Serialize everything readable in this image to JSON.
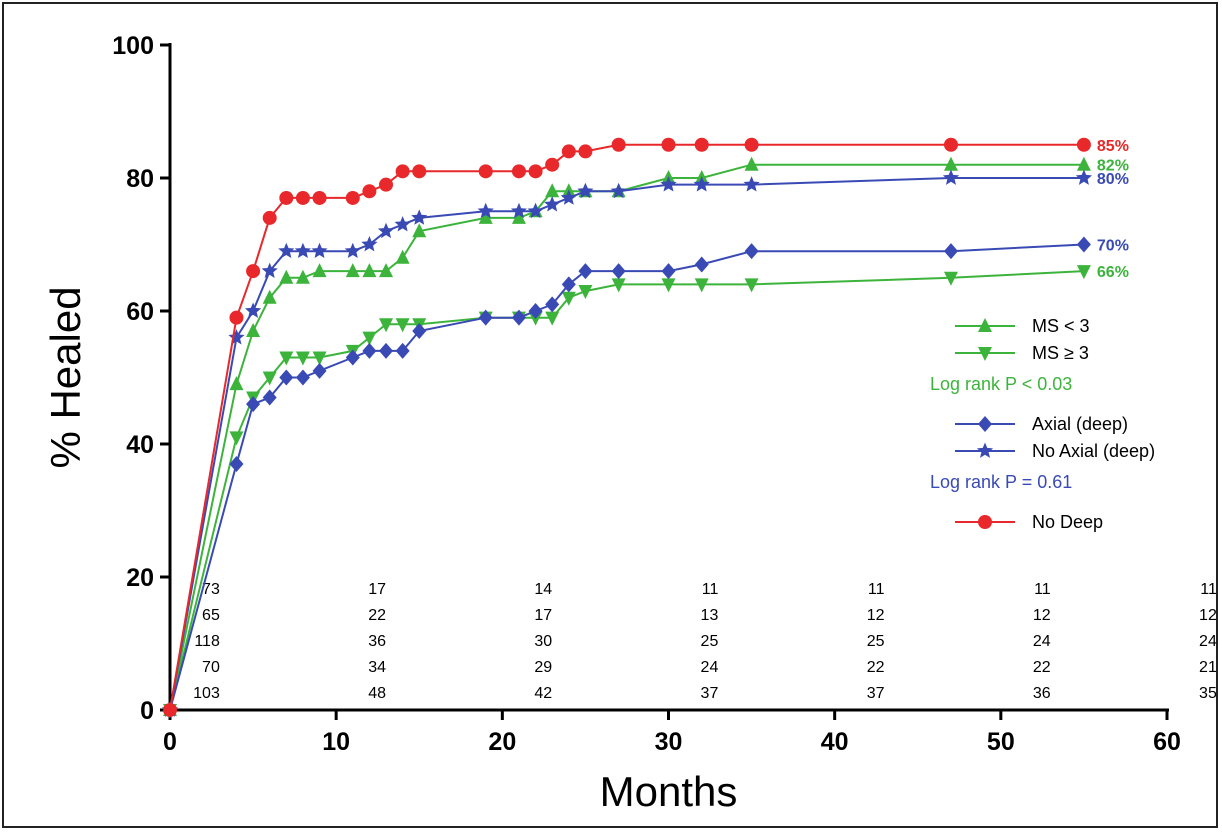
{
  "chart_data": {
    "type": "line",
    "subtype": "kaplan-meier step curves",
    "xlabel": "Months",
    "ylabel": "% Healed",
    "xlim": [
      0,
      60
    ],
    "ylim": [
      0,
      100
    ],
    "x_ticks": [
      "0",
      "10",
      "20",
      "30",
      "40",
      "50",
      "60"
    ],
    "y_ticks": [
      "0",
      "20",
      "40",
      "60",
      "80",
      "100"
    ],
    "grid": false,
    "legend_position": "right-middle",
    "series": [
      {
        "name": "MS < 3",
        "color": "#3cb43c",
        "marker": "triangle-up",
        "end_label": "82%",
        "points": [
          [
            0,
            0
          ],
          [
            4,
            49
          ],
          [
            5,
            57
          ],
          [
            6,
            62
          ],
          [
            7,
            65
          ],
          [
            8,
            65
          ],
          [
            9,
            66
          ],
          [
            11,
            66
          ],
          [
            12,
            66
          ],
          [
            13,
            66
          ],
          [
            14,
            68
          ],
          [
            15,
            72
          ],
          [
            19,
            74
          ],
          [
            21,
            74
          ],
          [
            22,
            75
          ],
          [
            23,
            78
          ],
          [
            24,
            78
          ],
          [
            25,
            78
          ],
          [
            27,
            78
          ],
          [
            30,
            80
          ],
          [
            32,
            80
          ],
          [
            35,
            82
          ],
          [
            47,
            82
          ],
          [
            55,
            82
          ]
        ]
      },
      {
        "name": "MS ≥ 3",
        "color": "#3cb43c",
        "marker": "triangle-down",
        "end_label": "66%",
        "points": [
          [
            0,
            0
          ],
          [
            4,
            41
          ],
          [
            5,
            47
          ],
          [
            6,
            50
          ],
          [
            7,
            53
          ],
          [
            8,
            53
          ],
          [
            9,
            53
          ],
          [
            11,
            54
          ],
          [
            12,
            56
          ],
          [
            13,
            58
          ],
          [
            14,
            58
          ],
          [
            15,
            58
          ],
          [
            19,
            59
          ],
          [
            21,
            59
          ],
          [
            22,
            59
          ],
          [
            23,
            59
          ],
          [
            24,
            62
          ],
          [
            25,
            63
          ],
          [
            27,
            64
          ],
          [
            30,
            64
          ],
          [
            32,
            64
          ],
          [
            35,
            64
          ],
          [
            47,
            65
          ],
          [
            55,
            66
          ]
        ]
      },
      {
        "name": "Axial (deep)",
        "color": "#3a4ab5",
        "marker": "diamond",
        "end_label": "70%",
        "points": [
          [
            0,
            0
          ],
          [
            4,
            37
          ],
          [
            5,
            46
          ],
          [
            6,
            47
          ],
          [
            7,
            50
          ],
          [
            8,
            50
          ],
          [
            9,
            51
          ],
          [
            11,
            53
          ],
          [
            12,
            54
          ],
          [
            13,
            54
          ],
          [
            14,
            54
          ],
          [
            15,
            57
          ],
          [
            19,
            59
          ],
          [
            21,
            59
          ],
          [
            22,
            60
          ],
          [
            23,
            61
          ],
          [
            24,
            64
          ],
          [
            25,
            66
          ],
          [
            27,
            66
          ],
          [
            30,
            66
          ],
          [
            32,
            67
          ],
          [
            35,
            69
          ],
          [
            47,
            69
          ],
          [
            55,
            70
          ]
        ]
      },
      {
        "name": "No Axial (deep)",
        "color": "#3a4ab5",
        "marker": "star",
        "end_label": "80%",
        "points": [
          [
            0,
            0
          ],
          [
            4,
            56
          ],
          [
            5,
            60
          ],
          [
            6,
            66
          ],
          [
            7,
            69
          ],
          [
            8,
            69
          ],
          [
            9,
            69
          ],
          [
            11,
            69
          ],
          [
            12,
            70
          ],
          [
            13,
            72
          ],
          [
            14,
            73
          ],
          [
            15,
            74
          ],
          [
            19,
            75
          ],
          [
            21,
            75
          ],
          [
            22,
            75
          ],
          [
            23,
            76
          ],
          [
            24,
            77
          ],
          [
            25,
            78
          ],
          [
            27,
            78
          ],
          [
            30,
            79
          ],
          [
            32,
            79
          ],
          [
            35,
            79
          ],
          [
            47,
            80
          ],
          [
            55,
            80
          ]
        ]
      },
      {
        "name": "No Deep",
        "color": "#e8282a",
        "marker": "circle",
        "end_label": "85%",
        "points": [
          [
            0,
            0
          ],
          [
            4,
            59
          ],
          [
            5,
            66
          ],
          [
            6,
            74
          ],
          [
            7,
            77
          ],
          [
            8,
            77
          ],
          [
            9,
            77
          ],
          [
            11,
            77
          ],
          [
            12,
            78
          ],
          [
            13,
            79
          ],
          [
            14,
            81
          ],
          [
            15,
            81
          ],
          [
            19,
            81
          ],
          [
            21,
            81
          ],
          [
            22,
            81
          ],
          [
            23,
            82
          ],
          [
            24,
            84
          ],
          [
            25,
            84
          ],
          [
            27,
            85
          ],
          [
            30,
            85
          ],
          [
            32,
            85
          ],
          [
            35,
            85
          ],
          [
            47,
            85
          ],
          [
            55,
            85
          ]
        ]
      }
    ],
    "legend_groups": [
      {
        "entries": [
          "MS < 3",
          "MS ≥ 3"
        ],
        "logrank": "Log rank P < 0.03",
        "logrank_color": "#3cb43c"
      },
      {
        "entries": [
          "Axial (deep)",
          "No Axial (deep)"
        ],
        "logrank": "Log rank P = 0.61",
        "logrank_color": "#3a4ab5"
      },
      {
        "entries": [
          "No Deep"
        ]
      }
    ],
    "numbers_at_risk": {
      "x": [
        3,
        13,
        23,
        33,
        43,
        53,
        63
      ],
      "rows": [
        [
          "73",
          "17",
          "14",
          "11",
          "11",
          "11",
          "11"
        ],
        [
          "65",
          "22",
          "17",
          "13",
          "12",
          "12",
          "12"
        ],
        [
          "118",
          "36",
          "30",
          "25",
          "25",
          "24",
          "24"
        ],
        [
          "70",
          "34",
          "29",
          "24",
          "22",
          "22",
          "21"
        ],
        [
          "103",
          "48",
          "42",
          "37",
          "37",
          "36",
          "35"
        ]
      ]
    }
  }
}
